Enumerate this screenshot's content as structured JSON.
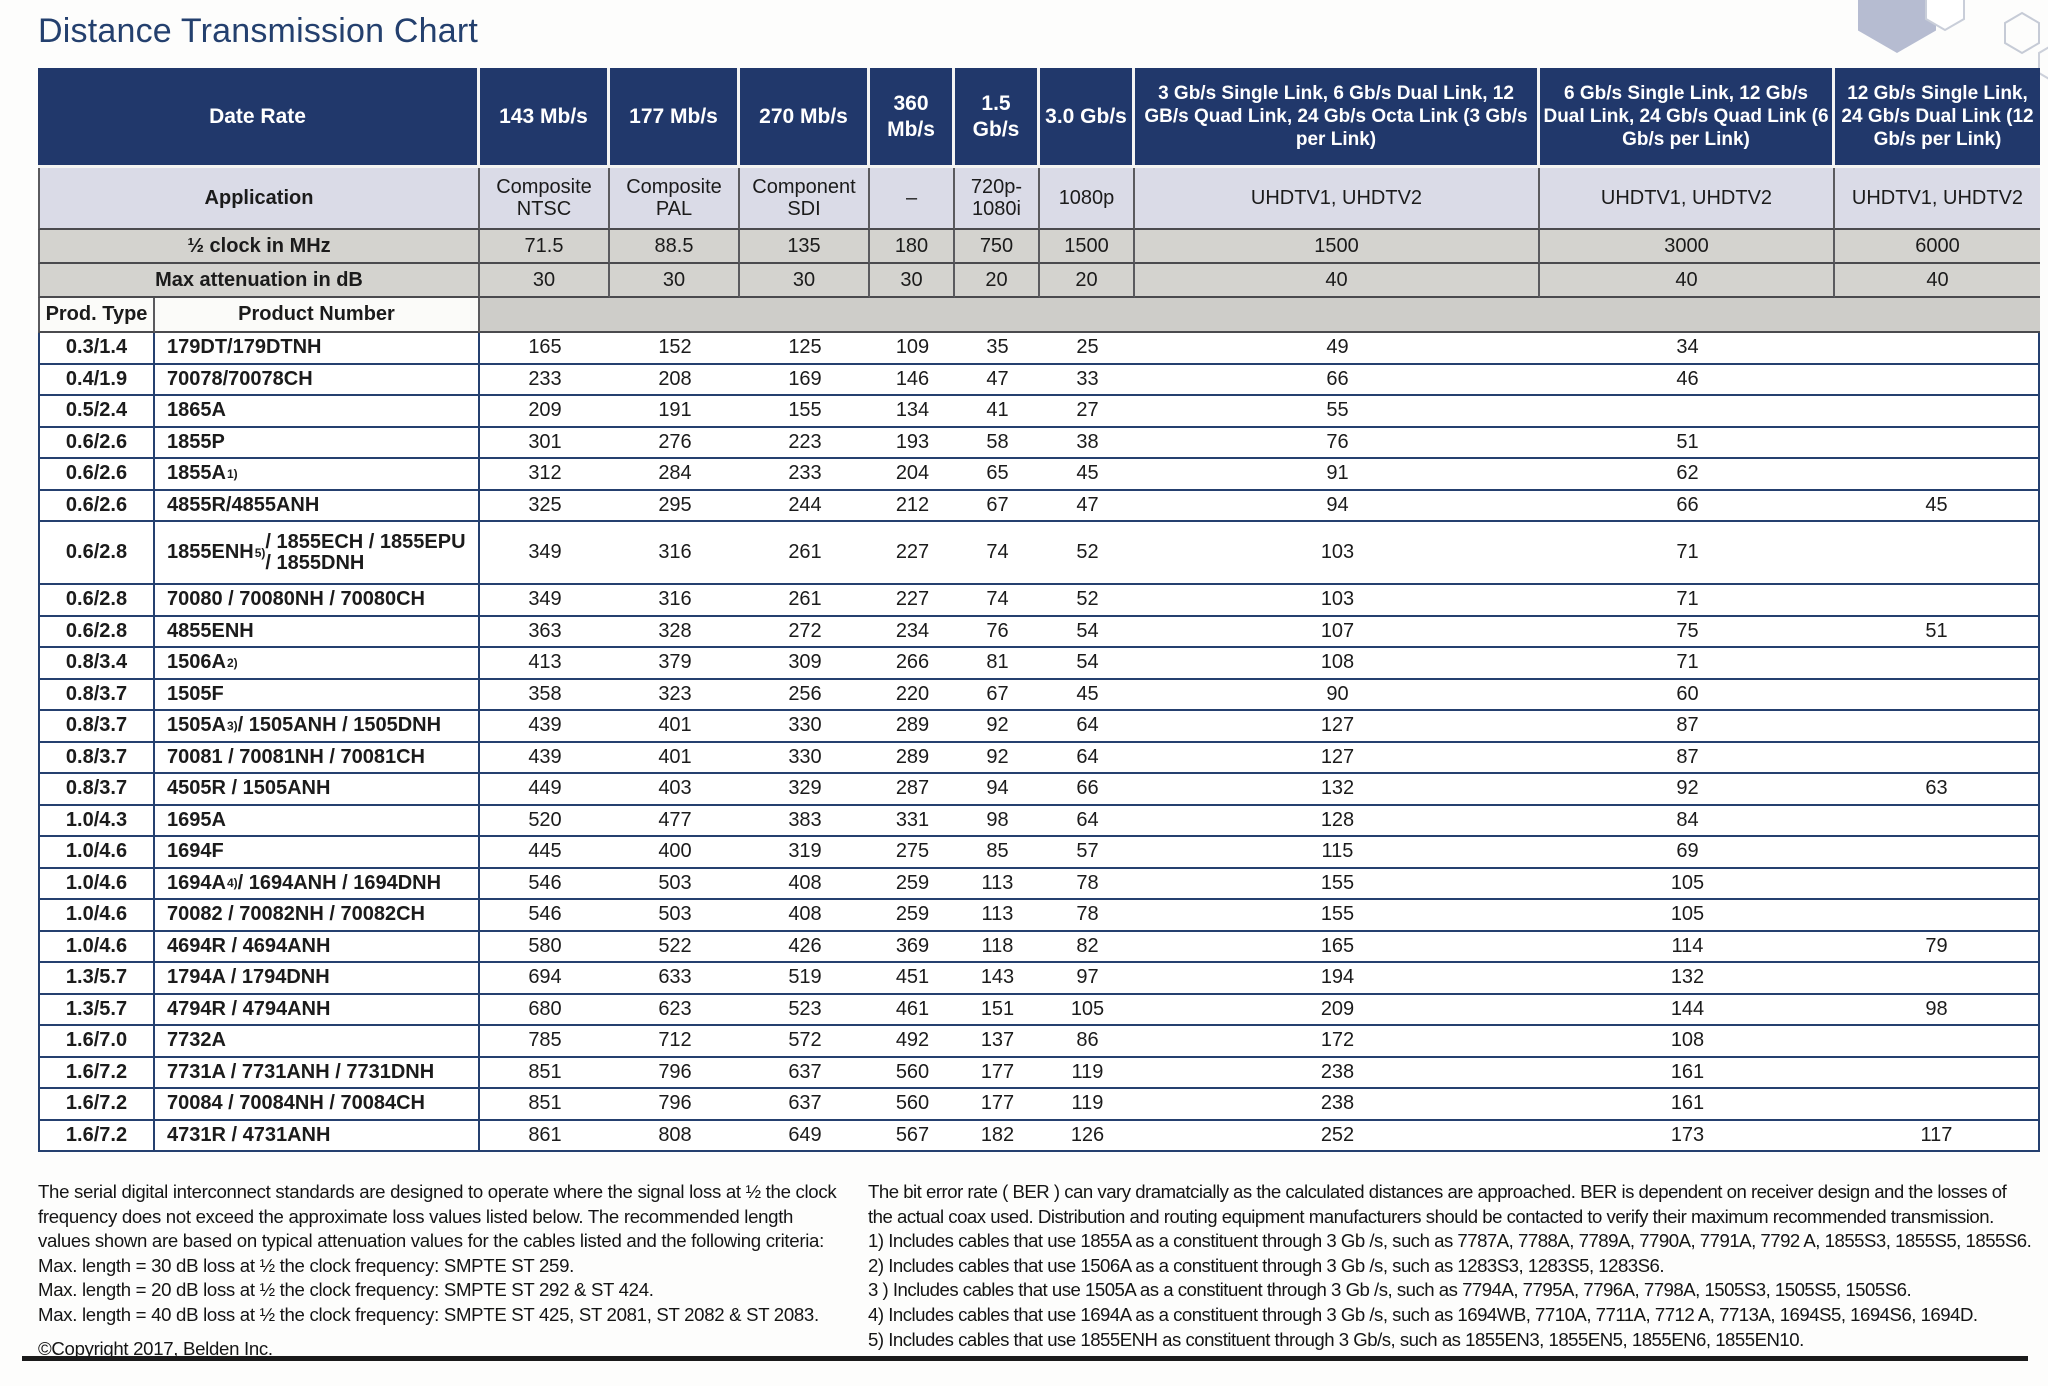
{
  "page_title": "Distance Transmission Chart",
  "colors": {
    "header_navy": "#21386b",
    "application_row": "#dadbe7",
    "gray_row": "#d4d3cf",
    "band_gray": "#cecdc9",
    "data_border_navy": "#25406f",
    "title_text": "#24406e",
    "hexagon_fill": "#b6bcd1",
    "hexagon_stroke": "#c6cbd6"
  },
  "table": {
    "corner_label": "Date Rate",
    "application_label": "Application",
    "half_clock_label": "½ clock in MHz",
    "max_att_label": "Max attenuation in dB",
    "prod_type_label": "Prod. Type",
    "product_number_label": "Product Number",
    "columns": [
      {
        "rate": "143 Mb/s",
        "application": "Composite NTSC",
        "half_clock": "71.5",
        "max_att": "30"
      },
      {
        "rate": "177 Mb/s",
        "application": "Composite PAL",
        "half_clock": "88.5",
        "max_att": "30"
      },
      {
        "rate": "270 Mb/s",
        "application": "Component SDI",
        "half_clock": "135",
        "max_att": "30"
      },
      {
        "rate": "360 Mb/s",
        "application": "–",
        "half_clock": "180",
        "max_att": "30"
      },
      {
        "rate": "1.5 Gb/s",
        "application": "720p-1080i",
        "half_clock": "750",
        "max_att": "20"
      },
      {
        "rate": "3.0 Gb/s",
        "application": "1080p",
        "half_clock": "1500",
        "max_att": "20"
      },
      {
        "rate": "3 Gb/s Single Link, 6 Gb/s Dual Link, 12 GB/s Quad Link, 24 Gb/s Octa Link (3 Gb/s per Link)",
        "application": "UHDTV1, UHDTV2",
        "half_clock": "1500",
        "max_att": "40"
      },
      {
        "rate": "6 Gb/s Single Link, 12 Gb/s Dual Link, 24 Gb/s Quad Link (6 Gb/s per Link)",
        "application": "UHDTV1, UHDTV2",
        "half_clock": "3000",
        "max_att": "40"
      },
      {
        "rate": "12 Gb/s Single Link, 24 Gb/s Dual Link (12 Gb/s per Link)",
        "application": "UHDTV1, UHDTV2",
        "half_clock": "6000",
        "max_att": "40"
      }
    ],
    "rows": [
      {
        "type": "0.3/1.4",
        "product": "179DT/179DTNH",
        "sup": "",
        "rest": "",
        "tall": false,
        "values": [
          "165",
          "152",
          "125",
          "109",
          "35",
          "25",
          "49",
          "34",
          ""
        ]
      },
      {
        "type": "0.4/1.9",
        "product": "70078/70078CH",
        "sup": "",
        "rest": "",
        "tall": false,
        "values": [
          "233",
          "208",
          "169",
          "146",
          "47",
          "33",
          "66",
          "46",
          ""
        ]
      },
      {
        "type": "0.5/2.4",
        "product": "1865A",
        "sup": "",
        "rest": "",
        "tall": false,
        "values": [
          "209",
          "191",
          "155",
          "134",
          "41",
          "27",
          "55",
          "",
          ""
        ]
      },
      {
        "type": "0.6/2.6",
        "product": "1855P",
        "sup": "",
        "rest": "",
        "tall": false,
        "values": [
          "301",
          "276",
          "223",
          "193",
          "58",
          "38",
          "76",
          "51",
          ""
        ]
      },
      {
        "type": "0.6/2.6",
        "product": "1855A",
        "sup": "1)",
        "rest": "",
        "tall": false,
        "values": [
          "312",
          "284",
          "233",
          "204",
          "65",
          "45",
          "91",
          "62",
          ""
        ]
      },
      {
        "type": "0.6/2.6",
        "product": "4855R/4855ANH",
        "sup": "",
        "rest": "",
        "tall": false,
        "values": [
          "325",
          "295",
          "244",
          "212",
          "67",
          "47",
          "94",
          "66",
          "45"
        ]
      },
      {
        "type": "0.6/2.8",
        "product": "1855ENH",
        "sup": "5)",
        "rest": "/ 1855ECH / 1855EPU / 1855DNH",
        "tall": true,
        "values": [
          "349",
          "316",
          "261",
          "227",
          "74",
          "52",
          "103",
          "71",
          ""
        ]
      },
      {
        "type": "0.6/2.8",
        "product": "70080 / 70080NH / 70080CH",
        "sup": "",
        "rest": "",
        "tall": false,
        "values": [
          "349",
          "316",
          "261",
          "227",
          "74",
          "52",
          "103",
          "71",
          ""
        ]
      },
      {
        "type": "0.6/2.8",
        "product": "4855ENH",
        "sup": "",
        "rest": "",
        "tall": false,
        "values": [
          "363",
          "328",
          "272",
          "234",
          "76",
          "54",
          "107",
          "75",
          "51"
        ]
      },
      {
        "type": "0.8/3.4",
        "product": "1506A",
        "sup": "2)",
        "rest": "",
        "tall": false,
        "values": [
          "413",
          "379",
          "309",
          "266",
          "81",
          "54",
          "108",
          "71",
          ""
        ]
      },
      {
        "type": "0.8/3.7",
        "product": "1505F",
        "sup": "",
        "rest": "",
        "tall": false,
        "values": [
          "358",
          "323",
          "256",
          "220",
          "67",
          "45",
          "90",
          "60",
          ""
        ]
      },
      {
        "type": "0.8/3.7",
        "product": "1505A",
        "sup": "3)",
        "rest": "/ 1505ANH / 1505DNH",
        "tall": false,
        "values": [
          "439",
          "401",
          "330",
          "289",
          "92",
          "64",
          "127",
          "87",
          ""
        ]
      },
      {
        "type": "0.8/3.7",
        "product": "70081 / 70081NH / 70081CH",
        "sup": "",
        "rest": "",
        "tall": false,
        "values": [
          "439",
          "401",
          "330",
          "289",
          "92",
          "64",
          "127",
          "87",
          ""
        ]
      },
      {
        "type": "0.8/3.7",
        "product": "4505R / 1505ANH",
        "sup": "",
        "rest": "",
        "tall": false,
        "values": [
          "449",
          "403",
          "329",
          "287",
          "94",
          "66",
          "132",
          "92",
          "63"
        ]
      },
      {
        "type": "1.0/4.3",
        "product": "1695A",
        "sup": "",
        "rest": "",
        "tall": false,
        "values": [
          "520",
          "477",
          "383",
          "331",
          "98",
          "64",
          "128",
          "84",
          ""
        ]
      },
      {
        "type": "1.0/4.6",
        "product": "1694F",
        "sup": "",
        "rest": "",
        "tall": false,
        "values": [
          "445",
          "400",
          "319",
          "275",
          "85",
          "57",
          "115",
          "69",
          ""
        ]
      },
      {
        "type": "1.0/4.6",
        "product": "1694A",
        "sup": "4)",
        "rest": "/ 1694ANH / 1694DNH",
        "tall": false,
        "values": [
          "546",
          "503",
          "408",
          "259",
          "113",
          "78",
          "155",
          "105",
          ""
        ]
      },
      {
        "type": "1.0/4.6",
        "product": "70082 / 70082NH / 70082CH",
        "sup": "",
        "rest": "",
        "tall": false,
        "values": [
          "546",
          "503",
          "408",
          "259",
          "113",
          "78",
          "155",
          "105",
          ""
        ]
      },
      {
        "type": "1.0/4.6",
        "product": "4694R / 4694ANH",
        "sup": "",
        "rest": "",
        "tall": false,
        "values": [
          "580",
          "522",
          "426",
          "369",
          "118",
          "82",
          "165",
          "114",
          "79"
        ]
      },
      {
        "type": "1.3/5.7",
        "product": "1794A / 1794DNH",
        "sup": "",
        "rest": "",
        "tall": false,
        "values": [
          "694",
          "633",
          "519",
          "451",
          "143",
          "97",
          "194",
          "132",
          ""
        ]
      },
      {
        "type": "1.3/5.7",
        "product": "4794R / 4794ANH",
        "sup": "",
        "rest": "",
        "tall": false,
        "values": [
          "680",
          "623",
          "523",
          "461",
          "151",
          "105",
          "209",
          "144",
          "98"
        ]
      },
      {
        "type": "1.6/7.0",
        "product": "7732A",
        "sup": "",
        "rest": "",
        "tall": false,
        "values": [
          "785",
          "712",
          "572",
          "492",
          "137",
          "86",
          "172",
          "108",
          ""
        ]
      },
      {
        "type": "1.6/7.2",
        "product": "7731A / 7731ANH / 7731DNH",
        "sup": "",
        "rest": "",
        "tall": false,
        "values": [
          "851",
          "796",
          "637",
          "560",
          "177",
          "119",
          "238",
          "161",
          ""
        ]
      },
      {
        "type": "1.6/7.2",
        "product": "70084 / 70084NH / 70084CH",
        "sup": "",
        "rest": "",
        "tall": false,
        "values": [
          "851",
          "796",
          "637",
          "560",
          "177",
          "119",
          "238",
          "161",
          ""
        ]
      },
      {
        "type": "1.6/7.2",
        "product": "4731R / 4731ANH",
        "sup": "",
        "rest": "",
        "tall": false,
        "values": [
          "861",
          "808",
          "649",
          "567",
          "182",
          "126",
          "252",
          "173",
          "117"
        ]
      }
    ]
  },
  "footnotes": {
    "left_lines": [
      "The serial digital interconnect standards are designed to operate where the signal loss at ½ the clock",
      "frequency does not exceed the approximate loss values listed below. The recommended length",
      "values shown are based on typical attenuation values for the cables listed and the following criteria:",
      "Max. length = 30 dB loss at ½ the clock frequency: SMPTE ST 259.",
      "Max. length = 20 dB loss at ½ the clock frequency: SMPTE ST 292 & ST 424.",
      "Max. length = 40 dB loss at ½ the clock frequency: SMPTE ST 425, ST 2081, ST 2082 & ST 2083."
    ],
    "copyright": "©Copyright 2017, Belden Inc.",
    "right_lines": [
      "The bit error rate ( BER ) can vary dramatcially as the calculated distances are approached. BER is dependent on receiver design and the losses of",
      "the actual coax used. Distribution and routing equipment manufacturers should be contacted to verify their maximum recommended transmission.",
      "1) Includes cables that use 1855A as a constituent through 3 Gb /s, such as 7787A, 7788A, 7789A, 7790A, 7791A, 7792 A, 1855S3, 1855S5, 1855S6.",
      "2) Includes cables that use 1506A as a constituent through 3 Gb /s, such as 1283S3, 1283S5, 1283S6.",
      "3 ) Includes cables that use 1505A as a constituent through 3 Gb /s, such as 7794A, 7795A, 7796A, 7798A, 1505S3, 1505S5, 1505S6.",
      "4) Includes cables that use 1694A as a constituent through 3 Gb /s, such as 1694WB, 7710A, 7711A, 7712 A, 7713A, 1694S5, 1694S6, 1694D.",
      "5) Includes cables that use 1855ENH as constituent through 3 Gb/s, such as 1855EN3, 1855EN5, 1855EN6, 1855EN10."
    ]
  }
}
